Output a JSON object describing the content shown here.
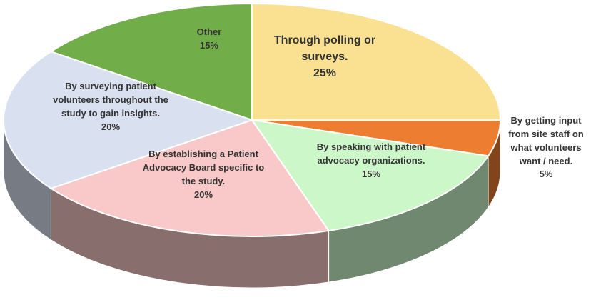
{
  "chart_data": {
    "type": "pie",
    "categories": [
      "Through polling or surveys.",
      "By getting input from site staff on what volunteers want / need.",
      "By speaking with patient advocacy organizations.",
      "By establishing a Patient Advocacy Board specific to the study.",
      "By surveying patient volunteers throughout the study to gain insights.",
      "Other"
    ],
    "values": [
      25,
      5,
      15,
      20,
      20,
      15
    ],
    "value_labels": [
      "25%",
      "5%",
      "15%",
      "20%",
      "20%",
      "15%"
    ],
    "colors": [
      "#fae192",
      "#ed7d31",
      "#ccf7c9",
      "#f9c8c8",
      "#d9e0ef",
      "#71ad48"
    ]
  }
}
